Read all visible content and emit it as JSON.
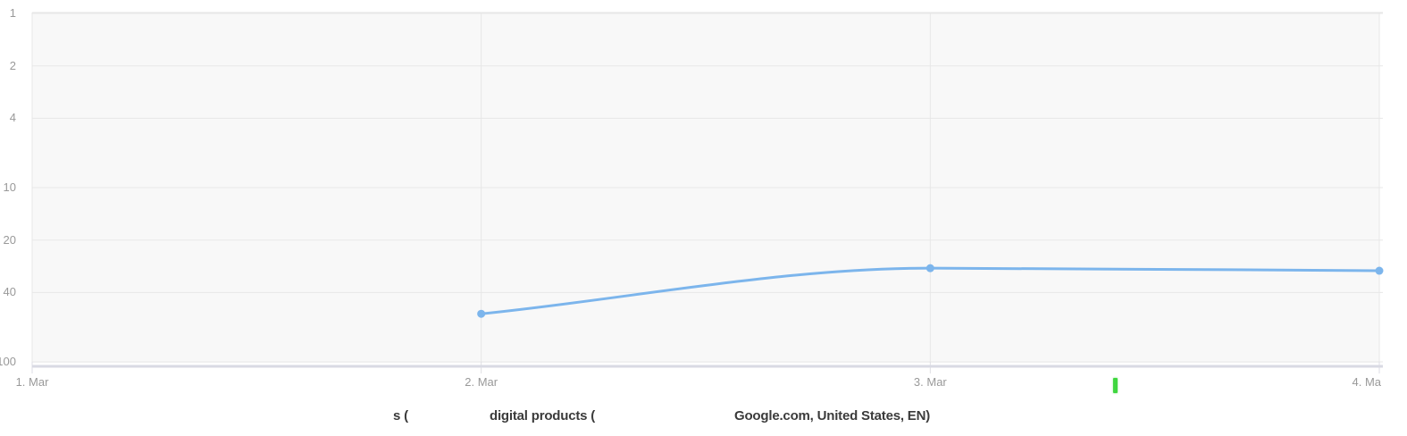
{
  "chart_data": {
    "type": "line",
    "title": "",
    "x_labels": [
      "1. Mar",
      "2. Mar",
      "3. Mar",
      "4. Ma"
    ],
    "y_ticks": [
      1,
      2,
      4,
      10,
      20,
      40,
      100
    ],
    "y_scale": "logarithmic-inverted-rank",
    "ylim": [
      1,
      100
    ],
    "grid": true,
    "legend_position": "bottom-center",
    "series": [
      {
        "name": "digital products (Google.com, United States, EN)",
        "color": "#7cb5ec",
        "values": [
          null,
          53,
          29,
          30
        ]
      }
    ],
    "annotations": [
      {
        "type": "note-marker",
        "position": "below x-axis between 3. Mar and 4. Mar",
        "color": "#3fd63f"
      }
    ]
  },
  "legend": {
    "fragments": [
      "s (",
      "digital products (",
      "Google.com, United States, EN)"
    ]
  },
  "colors": {
    "series": "#7cb5ec",
    "plot_bg": "#f8f8f8",
    "grid": "#e7e7e7",
    "plot_border": "#e4e4e4",
    "axis_line": "#d9dae3",
    "axis_tick": "#dedee4",
    "tick_label": "#999999",
    "legend_text": "#3b3b3b",
    "note_green": "#3fd63f"
  }
}
